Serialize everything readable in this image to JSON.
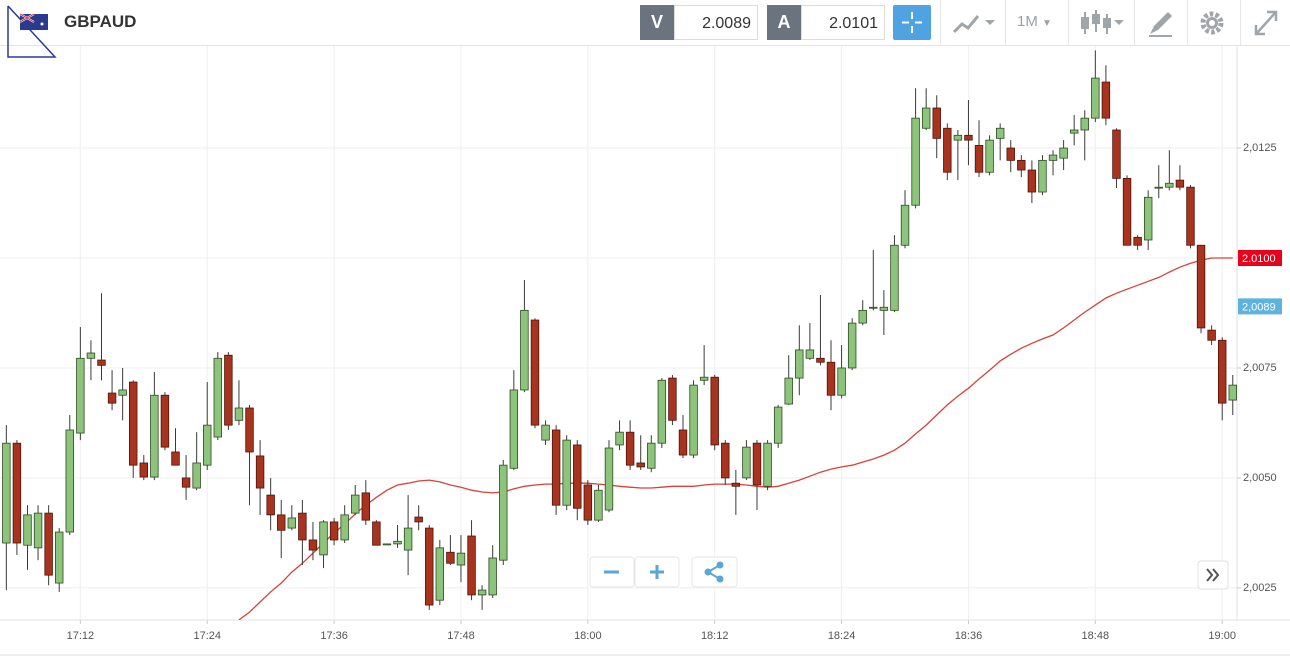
{
  "header": {
    "symbol": "GBPAUD",
    "bid_label": "V",
    "bid": "2.0089",
    "ask_label": "A",
    "ask": "2.0101",
    "timeframe": "1M"
  },
  "chart_data": {
    "type": "candlestick",
    "up_color": "#8dc47c",
    "down_color": "#a8341f",
    "x": [
      1025,
      1026,
      1027,
      1028,
      1029,
      1030,
      1031,
      1032,
      1033,
      1034,
      1035,
      1036,
      1037,
      1038,
      1039,
      1040,
      1041,
      1042,
      1043,
      1044,
      1045,
      1046,
      1047,
      1048,
      1049,
      1050,
      1051,
      1052,
      1053,
      1054,
      1055,
      1056,
      1057,
      1058,
      1059,
      1060,
      1061,
      1062,
      1063,
      1064,
      1065,
      1066,
      1067,
      1068,
      1069,
      1070,
      1071,
      1072,
      1073,
      1074,
      1075,
      1076,
      1077,
      1078,
      1079,
      1080,
      1081,
      1082,
      1083,
      1084,
      1085,
      1086,
      1087,
      1088,
      1089,
      1090,
      1091,
      1092,
      1093,
      1094,
      1095,
      1096,
      1097,
      1098,
      1099,
      1100,
      1101,
      1102,
      1103,
      1104,
      1105,
      1106,
      1107,
      1108,
      1109,
      1110,
      1111,
      1112,
      1113,
      1114,
      1115,
      1116,
      1117,
      1118,
      1119,
      1120,
      1121,
      1122,
      1123,
      1124,
      1125,
      1126,
      1127,
      1128,
      1129,
      1130,
      1131,
      1132,
      1133,
      1134,
      1135,
      1136,
      1137,
      1138,
      1139,
      1140,
      1141
    ],
    "open": [
      2.00352,
      2.00579,
      2.00347,
      2.00341,
      2.0042,
      2.00261,
      2.00377,
      2.00602,
      2.00772,
      2.00768,
      2.00693,
      2.00688,
      2.00718,
      2.00534,
      2.00502,
      2.00688,
      2.00559,
      2.005,
      2.00477,
      2.00529,
      2.00593,
      2.00779,
      2.00631,
      2.00659,
      2.0055,
      2.00461,
      2.00416,
      2.00386,
      2.0042,
      2.00359,
      2.00325,
      2.004,
      2.00359,
      2.0042,
      2.00466,
      2.004,
      2.0035,
      2.0035,
      2.00336,
      2.00411,
      2.00386,
      2.00222,
      2.00331,
      2.00302,
      2.00368,
      2.00234,
      2.00234,
      2.00313,
      2.00522,
      2.007,
      2.00859,
      2.00586,
      2.00609,
      2.00438,
      2.00575,
      2.00484,
      2.00404,
      2.00427,
      2.00575,
      2.00604,
      2.00534,
      2.00522,
      2.00579,
      2.00727,
      2.00609,
      2.00552,
      2.00722,
      2.00729,
      2.00579,
      2.00488,
      2.005,
      2.00579,
      2.00481,
      2.00579,
      2.00668,
      2.00727,
      2.00772,
      2.00772,
      2.00763,
      2.00688,
      2.0075,
      2.00852,
      2.00888,
      2.00881,
      2.00881,
      2.01029,
      2.0112,
      2.01295,
      2.01341,
      2.01295,
      2.01268,
      2.01279,
      2.01256,
      2.01195,
      2.01272,
      2.0125,
      2.01222,
      2.012,
      2.0115,
      2.01222,
      2.01227,
      2.01284,
      2.01291,
      2.01318,
      2.014,
      2.01291,
      2.01181,
      2.01047,
      2.01041,
      2.01161,
      2.01161,
      2.01177,
      2.01161,
      2.01029,
      2.00836,
      2.00813,
      2.00677
    ],
    "high": [
      2.0062,
      2.00586,
      2.00438,
      2.00438,
      2.00438,
      2.00386,
      2.00643,
      2.00843,
      2.00813,
      2.0092,
      2.00745,
      2.0075,
      2.00722,
      2.00552,
      2.00741,
      2.00695,
      2.00613,
      2.00552,
      2.00604,
      2.00718,
      2.00786,
      2.00786,
      2.00722,
      2.00666,
      2.00586,
      2.005,
      2.0045,
      2.00438,
      2.0045,
      2.004,
      2.00404,
      2.00409,
      2.00438,
      2.00484,
      2.00495,
      2.00404,
      2.0035,
      2.00393,
      2.00461,
      2.00438,
      2.00393,
      2.00359,
      2.0037,
      2.0037,
      2.00404,
      2.00256,
      2.00347,
      2.00541,
      2.00745,
      2.0095,
      2.00863,
      2.00631,
      2.0062,
      2.00597,
      2.00586,
      2.00495,
      2.00484,
      2.00586,
      2.00631,
      2.00631,
      2.00597,
      2.00597,
      2.00727,
      2.00734,
      2.00643,
      2.00722,
      2.00802,
      2.00734,
      2.00586,
      2.00518,
      2.00586,
      2.00586,
      2.00586,
      2.00666,
      2.00779,
      2.00847,
      2.00852,
      2.00916,
      2.00813,
      2.00802,
      2.00863,
      2.00904,
      2.01018,
      2.00927,
      2.01052,
      2.01154,
      2.01386,
      2.01386,
      2.0137,
      2.01306,
      2.01291,
      2.01359,
      2.01313,
      2.01279,
      2.01306,
      2.01268,
      2.01234,
      2.01222,
      2.01234,
      2.01245,
      2.01268,
      2.01325,
      2.01336,
      2.01472,
      2.01438,
      2.01295,
      2.01188,
      2.01052,
      2.01154,
      2.01211,
      2.01245,
      2.01211,
      2.01166,
      2.01029,
      2.00847,
      2.0082,
      2.00734
    ],
    "low": [
      2.00245,
      2.00325,
      2.00291,
      2.00313,
      2.00256,
      2.00241,
      2.0037,
      2.00586,
      2.00722,
      2.00722,
      2.00654,
      2.00631,
      2.005,
      2.00495,
      2.00495,
      2.00563,
      2.00529,
      2.0045,
      2.00472,
      2.00518,
      2.00586,
      2.00609,
      2.0062,
      2.00438,
      2.00416,
      2.00381,
      2.00318,
      2.00381,
      2.00302,
      2.00313,
      2.00295,
      2.00347,
      2.00352,
      2.00416,
      2.00393,
      2.00347,
      2.00347,
      2.00341,
      2.00279,
      2.00381,
      2.002,
      2.00211,
      2.00302,
      2.00263,
      2.00222,
      2.002,
      2.00227,
      2.00302,
      2.00518,
      2.00695,
      2.00613,
      2.00575,
      2.00416,
      2.00427,
      2.00404,
      2.00393,
      2.004,
      2.00422,
      2.00563,
      2.00518,
      2.00518,
      2.00513,
      2.00568,
      2.0062,
      2.00545,
      2.00545,
      2.00711,
      2.00563,
      2.00484,
      2.00416,
      2.00495,
      2.00427,
      2.00472,
      2.00568,
      2.00666,
      2.00688,
      2.00768,
      2.00756,
      2.00654,
      2.00681,
      2.00745,
      2.00847,
      2.00881,
      2.00825,
      2.00877,
      2.01022,
      2.01113,
      2.01291,
      2.01227,
      2.01177,
      2.01177,
      2.01211,
      2.01184,
      2.01188,
      2.01222,
      2.01195,
      2.01184,
      2.01125,
      2.01143,
      2.01188,
      2.012,
      2.01256,
      2.01222,
      2.01309,
      2.01302,
      2.01159,
      2.01029,
      2.01018,
      2.01018,
      2.01136,
      2.01154,
      2.01154,
      2.01022,
      2.00829,
      2.00802,
      2.00631,
      2.00643
    ],
    "close": [
      2.00579,
      2.00352,
      2.00416,
      2.0042,
      2.00279,
      2.00377,
      2.00609,
      2.00772,
      2.00784,
      2.00756,
      2.0067,
      2.007,
      2.00529,
      2.00502,
      2.00688,
      2.0057,
      2.00529,
      2.00479,
      2.00534,
      2.0062,
      2.00772,
      2.0062,
      2.00659,
      2.00559,
      2.00477,
      2.00416,
      2.00381,
      2.00409,
      2.00359,
      2.00336,
      2.004,
      2.00359,
      2.00416,
      2.00461,
      2.00404,
      2.00347,
      2.0035,
      2.00356,
      2.00386,
      2.004,
      2.00211,
      2.00341,
      2.00306,
      2.00329,
      2.00234,
      2.00245,
      2.00318,
      2.00529,
      2.007,
      2.00881,
      2.0062,
      2.0062,
      2.00438,
      2.00586,
      2.00431,
      2.00404,
      2.00472,
      2.00568,
      2.00604,
      2.00529,
      2.00525,
      2.00579,
      2.00722,
      2.00631,
      2.00552,
      2.00711,
      2.00729,
      2.00575,
      2.005,
      2.00481,
      2.0057,
      2.00484,
      2.00579,
      2.00661,
      2.00727,
      2.00791,
      2.00791,
      2.00763,
      2.00688,
      2.0075,
      2.00852,
      2.00881,
      2.00888,
      2.00888,
      2.01029,
      2.0112,
      2.01318,
      2.01341,
      2.01272,
      2.01195,
      2.01279,
      2.01268,
      2.01195,
      2.01268,
      2.01295,
      2.01222,
      2.012,
      2.0115,
      2.01222,
      2.01234,
      2.0125,
      2.01291,
      2.01318,
      2.01409,
      2.01318,
      2.01181,
      2.01029,
      2.01029,
      2.01138,
      2.01161,
      2.0117,
      2.01161,
      2.01029,
      2.00841,
      2.00813,
      2.0067,
      2.00711
    ],
    "moving_average": {
      "color": "#d9413a",
      "values": [
        null,
        null,
        null,
        null,
        null,
        null,
        null,
        null,
        null,
        null,
        null,
        null,
        null,
        null,
        null,
        null,
        null,
        null,
        null,
        null,
        null,
        null,
        2.00177,
        2.00195,
        2.00218,
        2.00241,
        2.00261,
        2.00286,
        2.00306,
        2.00329,
        2.00352,
        2.00375,
        2.00395,
        2.00418,
        2.00438,
        2.00456,
        2.00472,
        2.00484,
        2.00488,
        2.00493,
        2.00495,
        2.00491,
        2.00484,
        2.00479,
        2.00472,
        2.00468,
        2.00466,
        2.00468,
        2.00475,
        2.00481,
        2.00484,
        2.00486,
        2.00486,
        2.00488,
        2.00488,
        2.00488,
        2.00486,
        2.00484,
        2.00481,
        2.00479,
        2.00477,
        2.00477,
        2.00479,
        2.00481,
        2.00481,
        2.00481,
        2.00484,
        2.00486,
        2.00486,
        2.00486,
        2.00484,
        2.00481,
        2.00479,
        2.00481,
        2.00488,
        2.00495,
        2.00504,
        2.00513,
        2.0052,
        2.00525,
        2.00529,
        2.00536,
        2.00543,
        2.00552,
        2.00563,
        2.00579,
        2.006,
        2.0062,
        2.00643,
        2.00666,
        2.00686,
        2.00704,
        2.00725,
        2.00745,
        2.00766,
        2.00781,
        2.00795,
        2.00806,
        2.00816,
        2.00825,
        2.00841,
        2.00859,
        2.00877,
        2.00893,
        2.00909,
        2.0092,
        2.00929,
        2.00938,
        2.00947,
        2.00956,
        2.00968,
        2.00979,
        2.00988,
        2.00995,
        2.01,
        2.01,
        2.01
      ]
    },
    "xlim": [
      1024.4,
      1141.4
    ],
    "xticks": [
      {
        "value": 1032,
        "label": "17:12"
      },
      {
        "value": 1044,
        "label": "17:24"
      },
      {
        "value": 1056,
        "label": "17:36"
      },
      {
        "value": 1068,
        "label": "17:48"
      },
      {
        "value": 1080,
        "label": "18:00"
      },
      {
        "value": 1092,
        "label": "18:12"
      },
      {
        "value": 1104,
        "label": "18:24"
      },
      {
        "value": 1116,
        "label": "18:36"
      },
      {
        "value": 1128,
        "label": "18:48"
      },
      {
        "value": 1140,
        "label": "19:00"
      }
    ],
    "ylim": [
      2.00177,
      2.01482
    ],
    "yticks": [
      {
        "value": 2.0025,
        "label": "2,0025"
      },
      {
        "value": 2.005,
        "label": "2,0050"
      },
      {
        "value": 2.0075,
        "label": "2,0075"
      },
      {
        "value": 2.01,
        "label": "2,0100"
      },
      {
        "value": 2.0125,
        "label": "2,0125"
      }
    ],
    "grid": true,
    "price_tags": [
      {
        "value": 2.01,
        "label": "2.0100",
        "color": "#e8001c"
      },
      {
        "value": 2.0089,
        "label": "2,0089",
        "color": "#5cb3e0"
      }
    ]
  }
}
